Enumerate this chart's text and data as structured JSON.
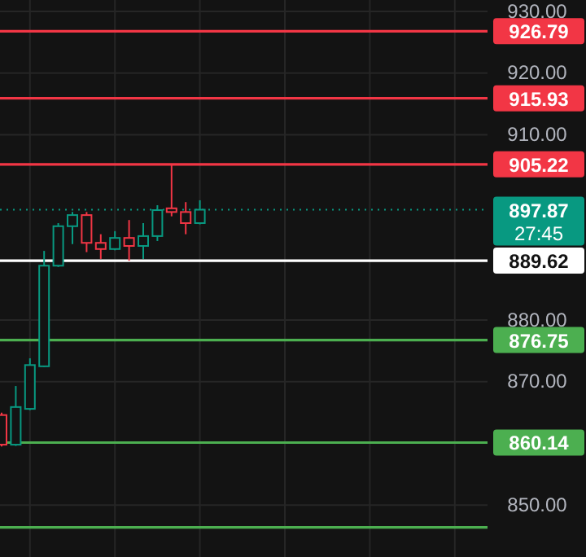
{
  "chart_data": {
    "type": "candlestick",
    "categories": [
      null,
      null,
      null,
      null,
      null,
      null,
      null,
      null,
      null,
      null,
      null,
      null,
      null,
      null,
      null,
      null,
      null,
      null,
      null,
      null,
      null,
      null,
      null,
      null,
      null,
      null,
      null,
      null,
      null,
      null,
      null,
      null,
      null,
      null
    ],
    "ohlc": [
      [
        864.6,
        865.0,
        859.5,
        859.8
      ],
      [
        859.8,
        869.3,
        859.6,
        865.9
      ],
      [
        865.6,
        873.8,
        865.4,
        872.7
      ],
      [
        872.5,
        891.2,
        872.4,
        888.8
      ],
      [
        888.8,
        895.7,
        888.6,
        895.2
      ],
      [
        895.2,
        897.5,
        892.3,
        897.0
      ],
      [
        897.0,
        897.5,
        891.0,
        892.5
      ],
      [
        892.5,
        893.9,
        889.9,
        891.5
      ],
      [
        891.5,
        894.4,
        891.3,
        893.3
      ],
      [
        893.3,
        896.2,
        889.6,
        892.0
      ],
      [
        892.0,
        895.7,
        889.9,
        893.6
      ],
      [
        893.6,
        898.6,
        892.8,
        897.8
      ],
      [
        898.1,
        905.22,
        896.8,
        897.5
      ],
      [
        897.5,
        899.1,
        893.9,
        895.7
      ],
      [
        895.7,
        899.4,
        895.5,
        897.87
      ],
      null,
      null,
      null,
      null,
      null,
      null,
      null,
      null,
      null,
      null,
      null,
      null,
      null,
      null,
      null,
      null,
      null,
      null,
      null
    ],
    "colors": [
      "#f23645",
      "#089981",
      "#089981",
      "#089981",
      "#089981",
      "#089981",
      "#f23645",
      "#f23645",
      "#089981",
      "#f23645",
      "#089981",
      "#089981",
      "#f23645",
      "#f23645",
      "#089981",
      null,
      null,
      null,
      null,
      null,
      null,
      null,
      null,
      null,
      null,
      null,
      null,
      null,
      null,
      null,
      null,
      null,
      null,
      null
    ],
    "ylim": [
      841.6,
      931.85
    ],
    "yticks": [
      {
        "value": 850,
        "label": "850.00"
      },
      {
        "value": 870,
        "label": "870.00"
      },
      {
        "value": 880,
        "label": "880.00"
      },
      {
        "value": 910,
        "label": "910.00"
      },
      {
        "value": 920,
        "label": "920.00"
      },
      {
        "value": 930,
        "label": "930.00"
      }
    ],
    "grid": true,
    "tick_labels": "y",
    "ref_lines": [
      {
        "axis": "y",
        "value": 926.79,
        "label": "926.79",
        "color": "#f23645"
      },
      {
        "axis": "y",
        "value": 915.93,
        "label": "915.93",
        "color": "#f23645"
      },
      {
        "axis": "y",
        "value": 905.22,
        "label": "905.22",
        "color": "#f23645"
      },
      {
        "axis": "y",
        "value": 897.87,
        "label": "897.87",
        "color": "#089981",
        "line_style": "dotted"
      },
      {
        "axis": "y",
        "value": 889.62,
        "label": "889.62",
        "color": "#ffffff"
      },
      {
        "axis": "y",
        "value": 876.75,
        "label": "876.75",
        "color": "#4caf50"
      },
      {
        "axis": "y",
        "value": 860.14,
        "label": "860.14",
        "color": "#4caf50"
      },
      {
        "axis": "y",
        "value": 846.4,
        "label": null,
        "color": "#4caf50"
      }
    ],
    "annotations": [
      "27:45"
    ]
  }
}
